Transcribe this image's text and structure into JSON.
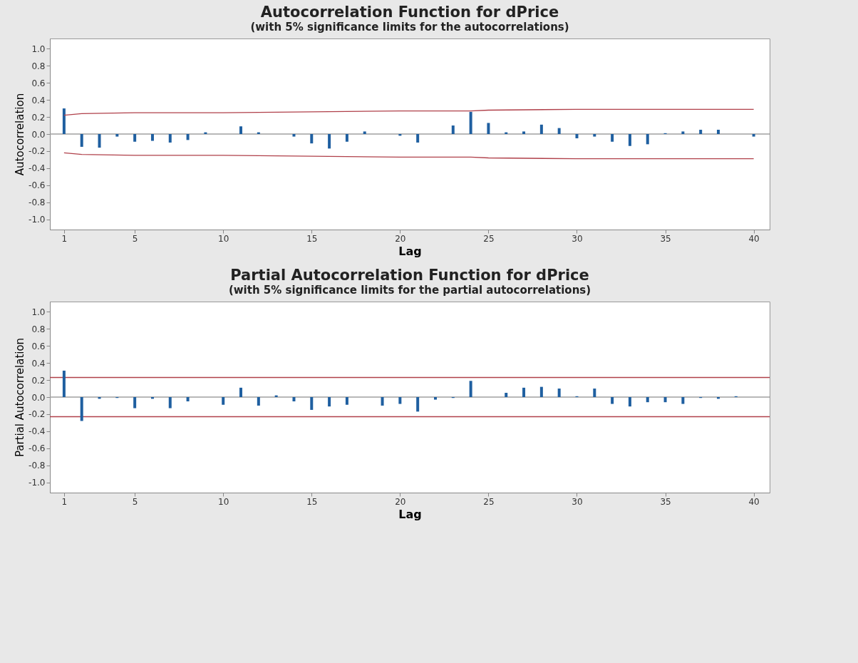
{
  "chart_data": [
    {
      "type": "bar",
      "title": "Autocorrelation Function for dPrice",
      "subtitle": "(with 5% significance limits for the autocorrelations)",
      "xlabel": "Lag",
      "ylabel": "Autocorrelation",
      "x": [
        1,
        2,
        3,
        4,
        5,
        6,
        7,
        8,
        9,
        10,
        11,
        12,
        13,
        14,
        15,
        16,
        17,
        18,
        19,
        20,
        21,
        22,
        23,
        24,
        25,
        26,
        27,
        28,
        29,
        30,
        31,
        32,
        33,
        34,
        35,
        36,
        37,
        38,
        39,
        40
      ],
      "series": [
        {
          "color": "#1f5fa0",
          "values": [
            0.3,
            -0.15,
            -0.16,
            -0.03,
            -0.09,
            -0.08,
            -0.1,
            -0.07,
            0.02,
            0,
            0.09,
            0.02,
            0,
            -0.03,
            -0.11,
            -0.17,
            -0.09,
            0.03,
            0,
            -0.02,
            -0.1,
            0,
            0.1,
            0.26,
            0.13,
            0.02,
            0.03,
            0.11,
            0.07,
            -0.05,
            -0.03,
            -0.09,
            -0.14,
            -0.12,
            0.01,
            0.03,
            0.05,
            0.05,
            0,
            -0.03
          ]
        },
        {
          "type": "line",
          "color": "#b0404a",
          "x": [
            1,
            2,
            5,
            10,
            15,
            20,
            24,
            25,
            30,
            35,
            40
          ],
          "values": [
            0.22,
            0.24,
            0.25,
            0.25,
            0.26,
            0.27,
            0.27,
            0.28,
            0.29,
            0.29,
            0.29
          ]
        },
        {
          "type": "line",
          "color": "#b0404a",
          "x": [
            1,
            2,
            5,
            10,
            15,
            20,
            24,
            25,
            30,
            35,
            40
          ],
          "values": [
            -0.22,
            -0.24,
            -0.25,
            -0.25,
            -0.26,
            -0.27,
            -0.27,
            -0.28,
            -0.29,
            -0.29,
            -0.29
          ]
        }
      ],
      "ref_lines": [
        {
          "axis": "y",
          "value": 0,
          "color": "#a0a0a0"
        }
      ],
      "xlim": [
        0.4,
        40.7
      ],
      "xticks": [
        1,
        5,
        10,
        15,
        20,
        25,
        30,
        35,
        40
      ],
      "ylim": [
        -1.12,
        1.12
      ],
      "yticks": [
        {
          "value": 1,
          "label": "1.0"
        },
        0.8,
        0.6,
        0.4,
        0.2,
        {
          "value": 0,
          "label": "0.0"
        },
        -0.2,
        -0.4,
        -0.6,
        -0.8,
        {
          "value": -1,
          "label": "-1.0"
        }
      ],
      "grid": false
    },
    {
      "type": "bar",
      "title": "Partial Autocorrelation Function for dPrice",
      "subtitle": "(with 5% significance limits for the partial autocorrelations)",
      "xlabel": "Lag",
      "ylabel": "Partial Autocorrelation",
      "x": [
        1,
        2,
        3,
        4,
        5,
        6,
        7,
        8,
        9,
        10,
        11,
        12,
        13,
        14,
        15,
        16,
        17,
        18,
        19,
        20,
        21,
        22,
        23,
        24,
        25,
        26,
        27,
        28,
        29,
        30,
        31,
        32,
        33,
        34,
        35,
        36,
        37,
        38,
        39,
        40
      ],
      "series": [
        {
          "color": "#1f5fa0",
          "values": [
            0.31,
            -0.28,
            -0.02,
            -0.01,
            -0.13,
            -0.02,
            -0.13,
            -0.05,
            0,
            -0.09,
            0.11,
            -0.1,
            0.02,
            -0.05,
            -0.15,
            -0.11,
            -0.09,
            0,
            -0.1,
            -0.08,
            -0.17,
            -0.03,
            -0.01,
            0.19,
            0,
            0.05,
            0.11,
            0.12,
            0.1,
            0.01,
            0.1,
            -0.08,
            -0.11,
            -0.06,
            -0.06,
            -0.08,
            -0.01,
            -0.02,
            0.01,
            0
          ]
        }
      ],
      "ref_lines": [
        {
          "axis": "y",
          "value": 0,
          "color": "#a0a0a0"
        },
        {
          "axis": "y",
          "value": 0.23,
          "color": "#b0404a"
        },
        {
          "axis": "y",
          "value": -0.23,
          "color": "#b0404a"
        }
      ],
      "xlim": [
        0.4,
        40.7
      ],
      "xticks": [
        1,
        5,
        10,
        15,
        20,
        25,
        30,
        35,
        40
      ],
      "ylim": [
        -1.12,
        1.12
      ],
      "yticks": [
        {
          "value": 1,
          "label": "1.0"
        },
        0.8,
        0.6,
        0.4,
        0.2,
        {
          "value": 0,
          "label": "0.0"
        },
        -0.2,
        -0.4,
        -0.6,
        -0.8,
        {
          "value": -1,
          "label": "-1.0"
        }
      ],
      "grid": false
    }
  ]
}
